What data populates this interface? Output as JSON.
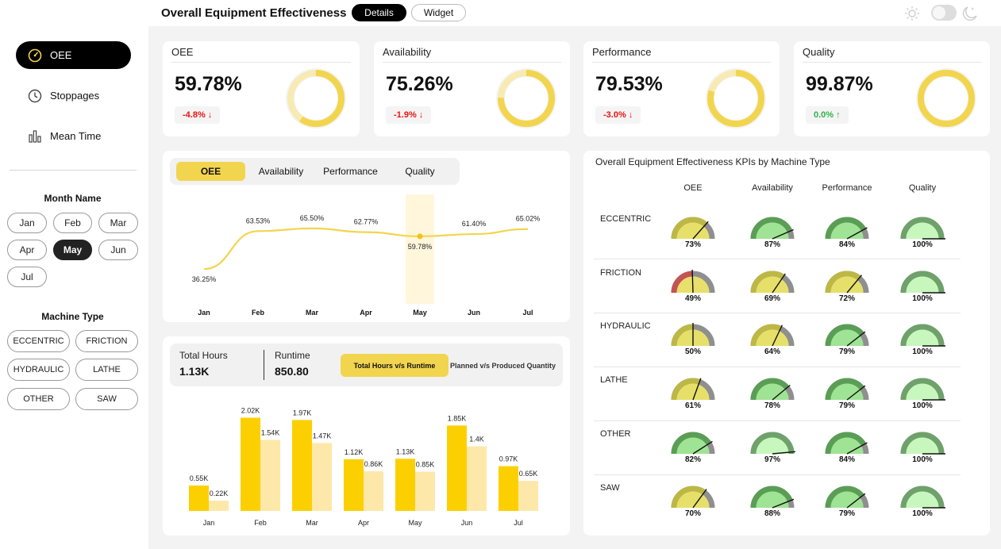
{
  "header": {
    "title": "Overall Equipment Effectiveness",
    "tabs": [
      "Details",
      "Widget"
    ]
  },
  "nav": [
    {
      "label": "OEE",
      "icon": "speedometer-icon",
      "active": true
    },
    {
      "label": "Stoppages",
      "icon": "clock-icon",
      "active": false
    },
    {
      "label": "Mean Time",
      "icon": "bar-chart-icon",
      "active": false
    }
  ],
  "filters": {
    "month_title": "Month Name",
    "months": [
      "Jan",
      "Feb",
      "Mar",
      "Apr",
      "May",
      "Jun",
      "Jul"
    ],
    "selected_month": "May",
    "machine_title": "Machine Type",
    "machines": [
      "ECCENTRIC",
      "FRICTION",
      "HYDRAULIC",
      "LATHE",
      "OTHER",
      "SAW"
    ]
  },
  "kpis": [
    {
      "title": "OEE",
      "value": "59.78%",
      "delta": "-4.8%",
      "direction": "down",
      "fraction": 0.5978
    },
    {
      "title": "Availability",
      "value": "75.26%",
      "delta": "-1.9%",
      "direction": "down",
      "fraction": 0.7526
    },
    {
      "title": "Performance",
      "value": "79.53%",
      "delta": "-3.0%",
      "direction": "down",
      "fraction": 0.7953
    },
    {
      "title": "Quality",
      "value": "99.87%",
      "delta": "0.0%",
      "direction": "up",
      "fraction": 0.9987
    }
  ],
  "trend_tabs": [
    "OEE",
    "Availability",
    "Performance",
    "Quality"
  ],
  "stats": {
    "total_hours_label": "Total Hours",
    "total_hours": "1.13K",
    "runtime_label": "Runtime",
    "runtime": "850.80",
    "btn_active": "Total Hours v/s Runtime",
    "btn_other": "Planned v/s Produced Quantity"
  },
  "matrix": {
    "title": "Overall Equipment Effectiveness KPIs by Machine Type",
    "columns": [
      "OEE",
      "Availability",
      "Performance",
      "Quality"
    ],
    "rows": [
      {
        "label": "ECCENTRIC",
        "values": [
          73,
          87,
          84,
          100
        ]
      },
      {
        "label": "FRICTION",
        "values": [
          49,
          69,
          72,
          100
        ]
      },
      {
        "label": "HYDRAULIC",
        "values": [
          50,
          64,
          79,
          100
        ]
      },
      {
        "label": "LATHE",
        "values": [
          61,
          78,
          79,
          100
        ]
      },
      {
        "label": "OTHER",
        "values": [
          82,
          97,
          84,
          100
        ]
      },
      {
        "label": "SAW",
        "values": [
          70,
          88,
          79,
          100
        ]
      }
    ],
    "value_labels": [
      [
        "73%",
        "87%",
        "84%",
        "100%"
      ],
      [
        "49%",
        "69%",
        "72%",
        "100%"
      ],
      [
        "50%",
        "64%",
        "79%",
        "100%"
      ],
      [
        "61%",
        "78%",
        "79%",
        "100%"
      ],
      [
        "82%",
        "97%",
        "84%",
        "100%"
      ],
      [
        "70%",
        "88%",
        "79%",
        "100%"
      ]
    ]
  },
  "colors": {
    "accent": "#f2d54e",
    "bar_primary": "#fcd000",
    "bar_secondary": "#fde8a9",
    "red": "#e11111",
    "green": "#2cb34a"
  },
  "chart_data": [
    {
      "type": "line",
      "categories": [
        "Jan",
        "Feb",
        "Mar",
        "Apr",
        "May",
        "Jun",
        "Jul"
      ],
      "series": [
        {
          "values": [
            36.25,
            63.53,
            65.5,
            62.77,
            59.78,
            61.4,
            65.02
          ]
        }
      ],
      "labels": [
        "36.25%",
        "63.53%",
        "65.50%",
        "62.77%",
        "59.78%",
        "61.40%",
        "65.02%"
      ],
      "highlight": "May",
      "ylim": [
        30,
        70
      ]
    },
    {
      "type": "bar",
      "categories": [
        "Jan",
        "Feb",
        "Mar",
        "Apr",
        "May",
        "Jun",
        "Jul"
      ],
      "series": [
        {
          "values": [
            0.55,
            2.02,
            1.97,
            1.12,
            1.13,
            1.85,
            0.97
          ],
          "labels": [
            "0.55K",
            "2.02K",
            "1.97K",
            "1.12K",
            "1.13K",
            "1.85K",
            "0.97K"
          ]
        },
        {
          "values": [
            0.22,
            1.54,
            1.47,
            0.86,
            0.85,
            1.4,
            0.65
          ],
          "labels": [
            "0.22K",
            "1.54K",
            "1.47K",
            "0.86K",
            "0.85K",
            "1.4K",
            "0.65K"
          ]
        }
      ],
      "ylim": [
        0,
        2.2
      ]
    }
  ]
}
